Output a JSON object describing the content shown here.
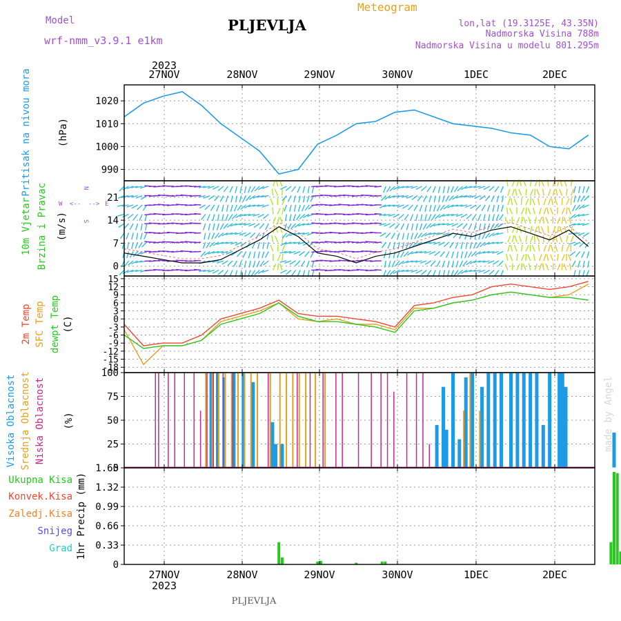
{
  "header": {
    "model_label": "Model",
    "model_name": "wrf-nmm_v3.9.1  e1km",
    "station": "PLJEVLJA",
    "product": "Meteogram",
    "coords": "lon,lat (19.3125E, 43.35N)",
    "elevation": "Nadmorska Visina 788m",
    "model_elevation": "Nadmorska Visina u modelu 801.295m",
    "footer_station": "PLJEVLJA",
    "watermark": "made by Angel"
  },
  "colors": {
    "pressure": "#1e9be6",
    "temp2m": "#f04632",
    "sfc_temp": "#e6a01e",
    "dewpt": "#28c81e",
    "high_cloud": "#1e9be6",
    "mid_cloud": "#e6a01e",
    "low_cloud": "#c8288c",
    "precip_total": "#28c81e",
    "precip_conv": "#f04632",
    "precip_frozen": "#f08228",
    "snow": "#5050e6",
    "graupel": "#28c8c8",
    "wind_label": "#28c81e",
    "compass": "#a050d2"
  },
  "time_axis": {
    "year": "2023",
    "dates": [
      "27NOV",
      "28NOV",
      "29NOV",
      "30NOV",
      "1DEC",
      "2DEC"
    ]
  },
  "panels": {
    "pressure": {
      "label": "Pritisak na nivou mora",
      "unit": "(hPa)",
      "ticks": [
        "990",
        "1000",
        "1010",
        "1020"
      ]
    },
    "wind": {
      "label1": "10m Vjetar",
      "label2": "Brzina i Pravac",
      "unit": "(m/s)",
      "ticks": [
        "0",
        "7",
        "14",
        "21"
      ],
      "compass_w": "W",
      "compass_e": "E",
      "compass_n": "N",
      "compass_s": "S",
      "arrow_left": "<--",
      "arrow_right": "-->"
    },
    "temp": {
      "label1": "2m Temp",
      "label2": "SFC Temp",
      "label3": "dewpt Temp",
      "unit": "(C)",
      "ticks": [
        "-18",
        "-15",
        "-12",
        "-9",
        "-6",
        "-3",
        "0",
        "3",
        "6",
        "9",
        "12",
        "15"
      ]
    },
    "cloud": {
      "label1": "Visoka Oblacnost",
      "label2": "Srednja Oblacnost",
      "label3": "Niska Oblacnost",
      "unit": "(%)",
      "ticks": [
        "0",
        "25",
        "50",
        "75",
        "100"
      ]
    },
    "precip": {
      "label": "1hr Precip (mm)",
      "ticks": [
        "0",
        "0.33",
        "0.66",
        "0.99",
        "1.32",
        "1.65"
      ],
      "legend": [
        "Ukupna Kisa",
        "Konvek.Kisa",
        "Zaledj.Kisa",
        "Snijeg",
        "Grad"
      ]
    }
  },
  "chart_data": [
    {
      "type": "line",
      "name": "pressure",
      "x_hours": [
        0,
        6,
        12,
        18,
        24,
        30,
        36,
        42,
        48,
        54,
        60,
        66,
        72,
        78,
        84,
        90,
        96,
        102,
        108,
        114,
        120,
        126,
        132,
        138,
        144
      ],
      "series": [
        {
          "values": [
            1013,
            1019,
            1022,
            1024,
            1018,
            1010,
            1004,
            998,
            988,
            990,
            1001,
            1005,
            1010,
            1011,
            1015,
            1016,
            1013,
            1010,
            1009,
            1008,
            1006,
            1005,
            1000,
            999,
            1005
          ]
        }
      ],
      "ylim": [
        985,
        1027
      ]
    },
    {
      "type": "line",
      "name": "wind_speed",
      "x_hours": [
        0,
        6,
        12,
        18,
        24,
        30,
        36,
        42,
        48,
        54,
        60,
        66,
        72,
        78,
        84,
        90,
        96,
        102,
        108,
        114,
        120,
        126,
        132,
        138,
        144
      ],
      "series": [
        {
          "values": [
            4,
            3,
            2,
            1,
            1,
            2,
            5,
            8,
            12,
            9,
            4,
            3,
            1,
            3,
            4,
            6,
            8,
            10,
            9,
            11,
            12,
            10,
            8,
            11,
            6
          ]
        }
      ],
      "ylim": [
        -3,
        26
      ]
    },
    {
      "type": "line",
      "name": "temperature",
      "x_hours": [
        0,
        6,
        12,
        18,
        24,
        30,
        36,
        42,
        48,
        54,
        60,
        66,
        72,
        78,
        84,
        90,
        96,
        102,
        108,
        114,
        120,
        126,
        132,
        138,
        144
      ],
      "series": [
        {
          "name": "2m Temp",
          "values": [
            -2,
            -10,
            -9,
            -9,
            -6,
            0,
            2,
            4,
            7,
            2,
            1,
            1,
            0,
            -1,
            -3,
            5,
            6,
            8,
            9,
            12,
            13,
            12,
            11,
            12,
            14
          ]
        },
        {
          "name": "SFC Temp",
          "values": [
            -4,
            -17,
            -10,
            -10,
            -8,
            -1,
            1,
            3,
            6,
            0,
            -1,
            0,
            -2,
            -2,
            -4,
            4,
            4,
            6,
            7,
            9,
            10,
            9,
            8,
            9,
            13
          ]
        },
        {
          "name": "dewpt Temp",
          "values": [
            -6,
            -11,
            -10,
            -10,
            -8,
            -2,
            0,
            2,
            6,
            1,
            -1,
            -1,
            -2,
            -3,
            -5,
            3,
            4,
            6,
            7,
            9,
            10,
            9,
            8,
            8,
            7
          ]
        }
      ],
      "ylim": [
        -20,
        16
      ]
    },
    {
      "type": "bar",
      "name": "cloud_cover",
      "note_units": "percent",
      "series": [
        {
          "name": "Visoka Oblacnost",
          "points": [
            [
              27,
              100
            ],
            [
              29,
              100
            ],
            [
              31,
              95
            ],
            [
              34,
              100
            ],
            [
              37,
              100
            ],
            [
              40,
              90
            ],
            [
              46,
              48
            ],
            [
              47,
              25
            ],
            [
              49,
              25
            ],
            [
              97,
              45
            ],
            [
              99,
              85
            ],
            [
              100,
              40
            ],
            [
              102,
              100
            ],
            [
              104,
              30
            ],
            [
              106,
              95
            ],
            [
              108,
              100
            ],
            [
              111,
              85
            ],
            [
              113,
              100
            ],
            [
              115,
              100
            ],
            [
              117,
              100
            ],
            [
              120,
              100
            ],
            [
              122,
              100
            ],
            [
              124,
              100
            ],
            [
              126,
              100
            ],
            [
              128,
              100
            ],
            [
              130,
              45
            ],
            [
              132,
              100
            ],
            [
              135,
              100
            ],
            [
              136,
              100
            ],
            [
              137,
              85
            ],
            [
              152,
              37
            ]
          ]
        },
        {
          "name": "Srednja Oblacnost",
          "points": [
            [
              25,
              100
            ],
            [
              27,
              100
            ],
            [
              29,
              100
            ],
            [
              31,
              100
            ],
            [
              33,
              100
            ],
            [
              35,
              100
            ],
            [
              37,
              100
            ],
            [
              39,
              100
            ],
            [
              41,
              100
            ],
            [
              45,
              100
            ],
            [
              48,
              100
            ],
            [
              50,
              100
            ],
            [
              52,
              100
            ],
            [
              54,
              100
            ],
            [
              56,
              100
            ],
            [
              59,
              100
            ],
            [
              62,
              100
            ],
            [
              105,
              60
            ],
            [
              107,
              100
            ],
            [
              110,
              60
            ],
            [
              155,
              100
            ],
            [
              156,
              100
            ],
            [
              157,
              88
            ]
          ]
        },
        {
          "name": "Niska Oblacnost",
          "points": [
            [
              10,
              100
            ],
            [
              11,
              100
            ],
            [
              14,
              100
            ],
            [
              16,
              100
            ],
            [
              19,
              100
            ],
            [
              22,
              100
            ],
            [
              24,
              60
            ],
            [
              26,
              100
            ],
            [
              28,
              100
            ],
            [
              31,
              100
            ],
            [
              34,
              100
            ],
            [
              45,
              100
            ],
            [
              54,
              100
            ],
            [
              58,
              100
            ],
            [
              62,
              100
            ],
            [
              66,
              100
            ],
            [
              68,
              100
            ],
            [
              73,
              100
            ],
            [
              77,
              100
            ],
            [
              80,
              100
            ],
            [
              82,
              100
            ],
            [
              84,
              80
            ],
            [
              88,
              100
            ],
            [
              91,
              100
            ],
            [
              93,
              100
            ],
            [
              95,
              25
            ]
          ]
        }
      ],
      "ylim": [
        0,
        100
      ]
    },
    {
      "type": "bar",
      "name": "precip",
      "series": [
        {
          "name": "Ukupna Kisa",
          "points": [
            [
              48,
              0.38
            ],
            [
              49,
              0.12
            ],
            [
              60,
              0.05
            ],
            [
              61,
              0.06
            ],
            [
              72,
              0.03
            ],
            [
              80,
              0.05
            ],
            [
              81,
              0.05
            ],
            [
              151,
              0.38
            ],
            [
              152,
              1.58
            ],
            [
              153,
              1.56
            ],
            [
              154,
              0.22
            ]
          ]
        }
      ],
      "ylim": [
        0,
        1.65
      ]
    }
  ]
}
